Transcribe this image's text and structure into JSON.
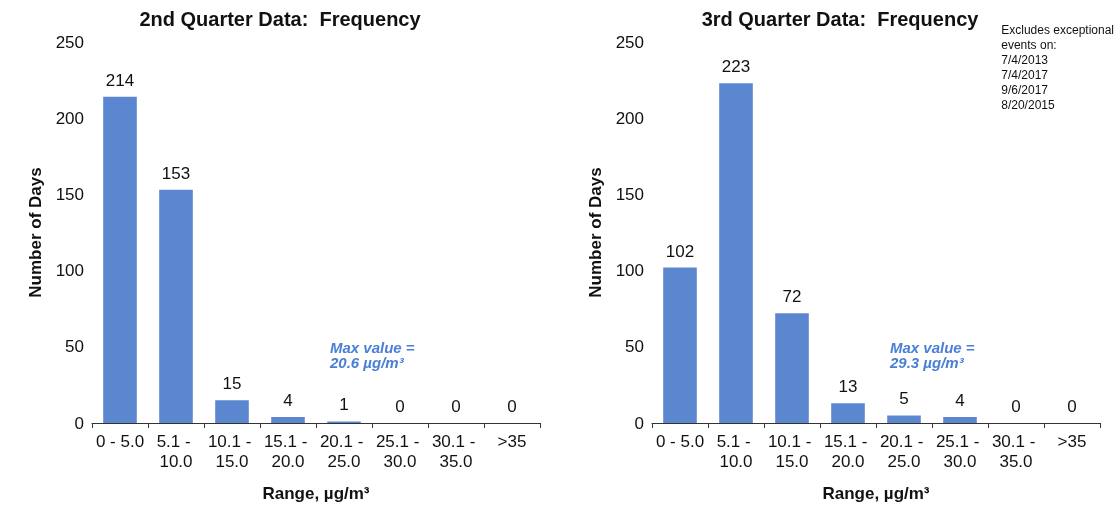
{
  "chart_data": [
    {
      "type": "bar",
      "title": "2nd Quarter Data:  Frequency",
      "xlabel": "Range, µg/m³",
      "ylabel": "Number of Days",
      "categories": [
        "0 - 5.0",
        "5.1 - 10.0",
        "10.1 - 15.0",
        "15.1 - 20.0",
        "20.1 - 25.0",
        "25.1 - 30.0",
        "30.1 - 35.0",
        ">35"
      ],
      "values": [
        214,
        153,
        15,
        4,
        1,
        0,
        0,
        0
      ],
      "color": "#5b87d0",
      "ylim": [
        0,
        250
      ],
      "yticks": [
        0,
        50,
        100,
        150,
        200,
        250
      ],
      "grid": false,
      "data_labels": true,
      "annotations": [
        "Max value =\n20.6 µg/m³"
      ]
    },
    {
      "type": "bar",
      "title": "3rd Quarter Data:  Frequency",
      "xlabel": "Range, µg/m³",
      "ylabel": "Number of Days",
      "categories": [
        "0 - 5.0",
        "5.1 - 10.0",
        "10.1 - 15.0",
        "15.1 - 20.0",
        "20.1 - 25.0",
        "25.1 - 30.0",
        "30.1 - 35.0",
        ">35"
      ],
      "values": [
        102,
        223,
        72,
        13,
        5,
        4,
        0,
        0
      ],
      "color": "#5b87d0",
      "ylim": [
        0,
        250
      ],
      "yticks": [
        0,
        50,
        100,
        150,
        200,
        250
      ],
      "grid": false,
      "data_labels": true,
      "annotations": [
        "Max value =\n29.3 µg/m³",
        "Excludes exceptional\nevents on:\n7/4/2013\n7/4/2017\n9/6/2017\n8/20/2015"
      ]
    }
  ]
}
